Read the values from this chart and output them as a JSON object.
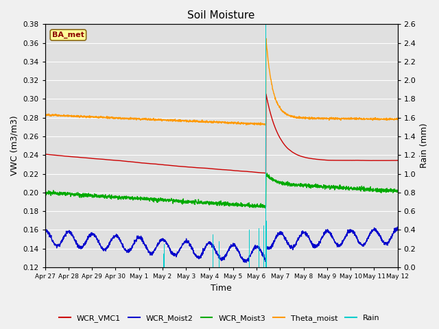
{
  "title": "Soil Moisture",
  "xlabel": "Time",
  "ylabel_left": "VWC (m3/m3)",
  "ylabel_right": "Rain (mm)",
  "ylim_left": [
    0.12,
    0.38
  ],
  "ylim_right": [
    0.0,
    2.6
  ],
  "x_tick_labels": [
    "Apr 27",
    "Apr 28",
    "Apr 29",
    "Apr 30",
    "May 1",
    "May 2",
    "May 3",
    "May 4",
    "May 5",
    "May 6",
    "May 7",
    "May 8",
    "May 9",
    "May 10",
    "May 11",
    "May 12"
  ],
  "station_label": "BA_met",
  "fig_facecolor": "#f0f0f0",
  "plot_facecolor": "#e0e0e0",
  "line_colors": {
    "WCR_VMC1": "#cc0000",
    "WCR_Moist2": "#0000cc",
    "WCR_Moist3": "#00aa00",
    "Theta_moist": "#ff9900",
    "Rain": "#00cccc"
  },
  "legend_entries": [
    "WCR_VMC1",
    "WCR_Moist2",
    "WCR_Moist3",
    "Theta_moist",
    "Rain"
  ],
  "spike_day": 9.4,
  "n_points": 2000,
  "total_days": 15
}
